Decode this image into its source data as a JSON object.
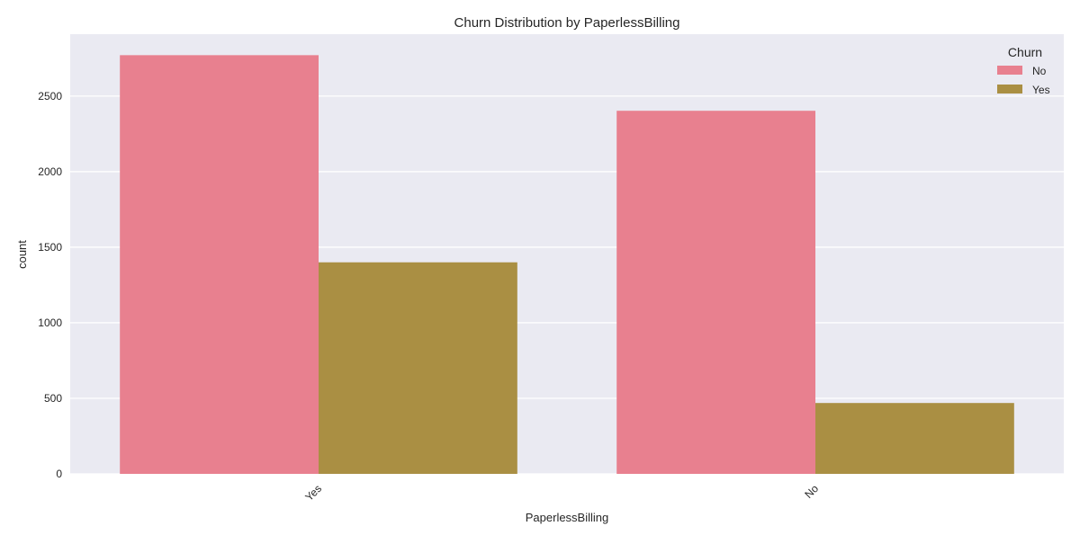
{
  "chart_data": {
    "type": "bar",
    "title": "Churn Distribution by PaperlessBilling",
    "xlabel": "PaperlessBilling",
    "ylabel": "count",
    "categories": [
      "Yes",
      "No"
    ],
    "series": [
      {
        "name": "No",
        "values": [
          2771,
          2403
        ],
        "color": "#e8808f"
      },
      {
        "name": "Yes",
        "values": [
          1400,
          469
        ],
        "color": "#aa8f43"
      }
    ],
    "ylim": [
      0,
      2910
    ],
    "yticks": [
      0,
      500,
      1000,
      1500,
      2000,
      2500
    ],
    "legend": {
      "title": "Churn",
      "placement": "top-right"
    },
    "grid": true,
    "background": "#eaeaf2"
  }
}
